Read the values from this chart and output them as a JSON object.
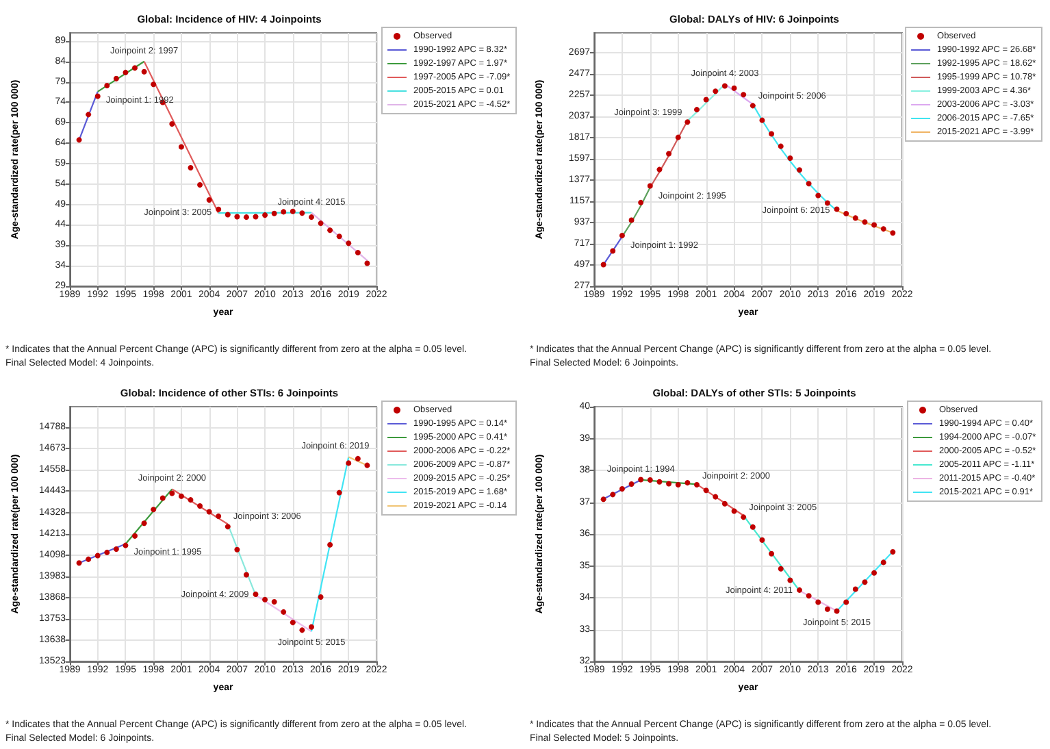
{
  "chart_data": [
    {
      "type": "scatter",
      "title": "Global: Incidence of HIV: 4 Joinpoints",
      "xlabel": "year",
      "ylabel": "Age-standardized rate(per 100 000)",
      "xlim": [
        1989,
        2022
      ],
      "xticks": [
        1989,
        1992,
        1995,
        1998,
        2001,
        2004,
        2007,
        2010,
        2013,
        2016,
        2019,
        2022
      ],
      "ylim": [
        29,
        91
      ],
      "yticks": [
        29,
        34,
        39,
        44,
        49,
        54,
        59,
        64,
        69,
        74,
        79,
        84,
        89
      ],
      "grid": true,
      "legend": "right",
      "series": [
        {
          "name": "Observed",
          "type": "scatter",
          "marker": "circle",
          "color": "#c00000",
          "x": [
            1990,
            1991,
            1992,
            1993,
            1994,
            1995,
            1996,
            1997,
            1998,
            1999,
            2000,
            2001,
            2002,
            2003,
            2004,
            2005,
            2006,
            2007,
            2008,
            2009,
            2010,
            2011,
            2012,
            2013,
            2014,
            2015,
            2016,
            2017,
            2018,
            2019,
            2020,
            2021
          ],
          "values": [
            64.8,
            71.0,
            75.5,
            78.1,
            79.8,
            81.3,
            82.4,
            81.5,
            78.4,
            74.0,
            68.7,
            63.1,
            58.0,
            53.8,
            50.1,
            47.8,
            46.5,
            46.0,
            45.9,
            46.0,
            46.4,
            46.8,
            47.2,
            47.3,
            46.9,
            45.9,
            44.4,
            42.7,
            41.2,
            39.5,
            37.2,
            34.6
          ]
        },
        {
          "name": "1990-1992 APC = 8.32*",
          "type": "line",
          "marker": "none",
          "color": "#5a5ad6",
          "x": [
            1990,
            1992
          ],
          "values": [
            64.8,
            76.6
          ]
        },
        {
          "name": "1992-1997 APC = 1.97*",
          "type": "line",
          "marker": "none",
          "color": "#3c9a3c",
          "x": [
            1992,
            1997
          ],
          "values": [
            76.6,
            84.0
          ]
        },
        {
          "name": "1997-2005 APC = -7.09*",
          "type": "line",
          "marker": "none",
          "color": "#e05a5a",
          "x": [
            1997,
            2005
          ],
          "values": [
            84.0,
            46.9
          ]
        },
        {
          "name": "2005-2015 APC = 0.01",
          "type": "line",
          "marker": "none",
          "color": "#48e0e0",
          "x": [
            2005,
            2015
          ],
          "values": [
            46.9,
            47.0
          ]
        },
        {
          "name": "2015-2021 APC = -4.52*",
          "type": "line",
          "marker": "none",
          "color": "#e0b4e8",
          "x": [
            2015,
            2021
          ],
          "values": [
            47.0,
            35.3
          ]
        }
      ],
      "annotations": [
        {
          "text": "Joinpoint 1: 1992",
          "x": 1992,
          "y": 76.6
        },
        {
          "text": "Joinpoint 2: 1997",
          "x": 1997,
          "y": 84.0
        },
        {
          "text": "Joinpoint 3: 2005",
          "x": 2005,
          "y": 46.9
        },
        {
          "text": "Joinpoint 4: 2015",
          "x": 2015,
          "y": 47.0
        },
        "* Indicates that the Annual Percent Change (APC) is significantly different from zero at the alpha = 0.05 level.",
        "Final Selected Model: 4 Joinpoints."
      ]
    },
    {
      "type": "scatter",
      "title": "Global: DALYs of HIV: 6 Joinpoints",
      "xlabel": "year",
      "ylabel": "Age-standardized rate(per 100 000)",
      "xlim": [
        1989,
        2022
      ],
      "xticks": [
        1989,
        1992,
        1995,
        1998,
        2001,
        2004,
        2007,
        2010,
        2013,
        2016,
        2019,
        2022
      ],
      "ylim": [
        277,
        2900
      ],
      "yticks": [
        277,
        497,
        717,
        937,
        1157,
        1377,
        1597,
        1817,
        2037,
        2257,
        2477,
        2697
      ],
      "grid": true,
      "legend": "right",
      "series": [
        {
          "name": "Observed",
          "type": "scatter",
          "marker": "circle",
          "color": "#c00000",
          "x": [
            1990,
            1991,
            1992,
            1993,
            1994,
            1995,
            1996,
            1997,
            1998,
            1999,
            2000,
            2001,
            2002,
            2003,
            2004,
            2005,
            2006,
            2007,
            2008,
            2009,
            2010,
            2011,
            2012,
            2013,
            2014,
            2015,
            2016,
            2017,
            2018,
            2019,
            2020,
            2021
          ],
          "values": [
            500,
            642,
            801,
            961,
            1143,
            1316,
            1485,
            1649,
            1818,
            1977,
            2105,
            2209,
            2296,
            2351,
            2328,
            2260,
            2146,
            1995,
            1854,
            1726,
            1603,
            1480,
            1339,
            1216,
            1138,
            1075,
            1029,
            983,
            942,
            911,
            870,
            828
          ]
        },
        {
          "name": "1990-1992 APC = 26.68*",
          "type": "line",
          "marker": "none",
          "color": "#5a5ad6",
          "x": [
            1990,
            1991,
            1992
          ],
          "values": [
            500,
            645,
            790
          ]
        },
        {
          "name": "1992-1995 APC = 18.62*",
          "type": "line",
          "marker": "none",
          "color": "#5ca05c",
          "x": [
            1992,
            1993,
            1994,
            1995
          ],
          "values": [
            790,
            940,
            1110,
            1300
          ]
        },
        {
          "name": "1995-1999 APC = 10.78*",
          "type": "line",
          "marker": "none",
          "color": "#d05a5a",
          "x": [
            1995,
            1996,
            1997,
            1998,
            1999
          ],
          "values": [
            1300,
            1460,
            1630,
            1810,
            1990
          ]
        },
        {
          "name": "1999-2003 APC = 4.36*",
          "type": "line",
          "marker": "none",
          "color": "#88f0e0",
          "x": [
            1999,
            2000,
            2001,
            2002,
            2003
          ],
          "values": [
            1990,
            2080,
            2175,
            2270,
            2370
          ]
        },
        {
          "name": "2003-2006 APC = -3.03*",
          "type": "line",
          "marker": "none",
          "color": "#dca8f0",
          "x": [
            2003,
            2004,
            2005,
            2006
          ],
          "values": [
            2370,
            2300,
            2230,
            2160
          ]
        },
        {
          "name": "2006-2015 APC = -7.65*",
          "type": "line",
          "marker": "none",
          "color": "#40e4f0",
          "x": [
            2006,
            2007,
            2008,
            2009,
            2010,
            2011,
            2012,
            2013,
            2014,
            2015
          ],
          "values": [
            2160,
            1995,
            1842,
            1701,
            1571,
            1451,
            1340,
            1237,
            1143,
            1060
          ]
        },
        {
          "name": "2015-2021 APC = -3.99*",
          "type": "line",
          "marker": "none",
          "color": "#f0b464",
          "x": [
            2015,
            2016,
            2017,
            2018,
            2019,
            2020,
            2021
          ],
          "values": [
            1060,
            1018,
            977,
            938,
            901,
            865,
            830
          ]
        }
      ],
      "annotations": [
        {
          "text": "Joinpoint 1: 1992",
          "x": 1992,
          "y": 790
        },
        {
          "text": "Joinpoint 2: 1995",
          "x": 1995,
          "y": 1300
        },
        {
          "text": "Joinpoint 3: 1999",
          "x": 1999,
          "y": 1990
        },
        {
          "text": "Joinpoint 4: 2003",
          "x": 2003,
          "y": 2370
        },
        {
          "text": "Joinpoint 5: 2006",
          "x": 2006,
          "y": 2160
        },
        {
          "text": "Joinpoint 6: 2015",
          "x": 2015,
          "y": 1060
        },
        "* Indicates that the Annual Percent Change (APC) is significantly different from zero at the alpha = 0.05 level.",
        "Final Selected Model: 6 Joinpoints."
      ]
    },
    {
      "type": "scatter",
      "title": "Global: Incidence of other STIs: 6 Joinpoints",
      "xlabel": "year",
      "ylabel": "Age-standardized rate(per 100 000)",
      "xlim": [
        1989,
        2022
      ],
      "xticks": [
        1989,
        1992,
        1995,
        1998,
        2001,
        2004,
        2007,
        2010,
        2013,
        2016,
        2019,
        2022
      ],
      "ylim": [
        13523,
        14900
      ],
      "yticks": [
        13523,
        13638,
        13753,
        13868,
        13983,
        14098,
        14213,
        14328,
        14443,
        14558,
        14673,
        14788
      ],
      "grid": true,
      "legend": "right",
      "series": [
        {
          "name": "Observed",
          "type": "scatter",
          "marker": "circle",
          "color": "#c00000",
          "x": [
            1990,
            1991,
            1992,
            1993,
            1994,
            1995,
            1996,
            1997,
            1998,
            1999,
            2000,
            2001,
            2002,
            2003,
            2004,
            2005,
            2006,
            2007,
            2008,
            2009,
            2010,
            2011,
            2012,
            2013,
            2014,
            2015,
            2016,
            2017,
            2018,
            2019,
            2020,
            2021
          ],
          "values": [
            14055,
            14075,
            14095,
            14112,
            14130,
            14150,
            14201,
            14270,
            14344,
            14406,
            14432,
            14416,
            14396,
            14363,
            14332,
            14308,
            14251,
            14127,
            13991,
            13886,
            13857,
            13845,
            13790,
            13733,
            13692,
            13709,
            13871,
            14153,
            14435,
            14595,
            14619,
            14583
          ]
        },
        {
          "name": "1990-1995 APC = 0.14*",
          "type": "line",
          "marker": "none",
          "color": "#5a5ad6",
          "x": [
            1990,
            1995
          ],
          "values": [
            14055,
            14158
          ]
        },
        {
          "name": "1995-2000 APC = 0.41*",
          "type": "line",
          "marker": "none",
          "color": "#3c9a3c",
          "x": [
            1995,
            2000
          ],
          "values": [
            14158,
            14454
          ]
        },
        {
          "name": "2000-2006 APC = -0.22*",
          "type": "line",
          "marker": "none",
          "color": "#e05a5a",
          "x": [
            2000,
            2006
          ],
          "values": [
            14454,
            14265
          ]
        },
        {
          "name": "2006-2009 APC = -0.87*",
          "type": "line",
          "marker": "none",
          "color": "#88e8dc",
          "x": [
            2006,
            2009
          ],
          "values": [
            14265,
            13881
          ]
        },
        {
          "name": "2009-2015 APC = -0.25*",
          "type": "line",
          "marker": "none",
          "color": "#ecbcec",
          "x": [
            2009,
            2015
          ],
          "values": [
            13881,
            13685
          ]
        },
        {
          "name": "2015-2019 APC = 1.68*",
          "type": "line",
          "marker": "none",
          "color": "#40e4f4",
          "x": [
            2015,
            2019
          ],
          "values": [
            13685,
            14628
          ]
        },
        {
          "name": "2019-2021 APC = -0.14",
          "type": "line",
          "marker": "none",
          "color": "#f0c474",
          "x": [
            2019,
            2021
          ],
          "values": [
            14628,
            14583
          ]
        }
      ],
      "annotations": [
        {
          "text": "Joinpoint 1: 1995",
          "x": 1995,
          "y": 14158
        },
        {
          "text": "Joinpoint 2: 2000",
          "x": 2000,
          "y": 14454
        },
        {
          "text": "Joinpoint 3: 2006",
          "x": 2006,
          "y": 14265
        },
        {
          "text": "Joinpoint 4: 2009",
          "x": 2009,
          "y": 13881
        },
        {
          "text": "Joinpoint 5: 2015",
          "x": 2015,
          "y": 13685
        },
        {
          "text": "Joinpoint 6: 2019",
          "x": 2019,
          "y": 14628
        },
        "* Indicates that the Annual Percent Change (APC) is significantly different from zero at the alpha = 0.05 level.",
        "Final Selected Model: 6 Joinpoints."
      ]
    },
    {
      "type": "scatter",
      "title": "Global: DALYs of other STIs: 5 Joinpoints",
      "xlabel": "year",
      "ylabel": "Age-standardized rate(per 100 000)",
      "xlim": [
        1989,
        2022
      ],
      "xticks": [
        1989,
        1992,
        1995,
        1998,
        2001,
        2004,
        2007,
        2010,
        2013,
        2016,
        2019,
        2022
      ],
      "ylim": [
        32,
        40
      ],
      "yticks": [
        32,
        33,
        34,
        35,
        36,
        37,
        38,
        39,
        40
      ],
      "grid": true,
      "legend": "right",
      "series": [
        {
          "name": "Observed",
          "type": "scatter",
          "marker": "circle",
          "color": "#c00000",
          "x": [
            1990,
            1991,
            1992,
            1993,
            1994,
            1995,
            1996,
            1997,
            1998,
            1999,
            2000,
            2001,
            2002,
            2003,
            2004,
            2005,
            2006,
            2007,
            2008,
            2009,
            2010,
            2011,
            2012,
            2013,
            2014,
            2015,
            2016,
            2017,
            2018,
            2019,
            2020,
            2021
          ],
          "values": [
            37.09,
            37.24,
            37.42,
            37.57,
            37.71,
            37.7,
            37.64,
            37.58,
            37.55,
            37.61,
            37.55,
            37.37,
            37.17,
            36.95,
            36.72,
            36.53,
            36.22,
            35.81,
            35.38,
            34.91,
            34.55,
            34.24,
            34.06,
            33.86,
            33.64,
            33.58,
            33.86,
            34.27,
            34.49,
            34.78,
            35.11,
            35.44
          ]
        },
        {
          "name": "1990-1994 APC = 0.40*",
          "type": "line",
          "marker": "none",
          "color": "#5a5ad6",
          "x": [
            1990,
            1994
          ],
          "values": [
            37.1,
            37.7
          ]
        },
        {
          "name": "1994-2000 APC = -0.07*",
          "type": "line",
          "marker": "none",
          "color": "#3c9a3c",
          "x": [
            1994,
            2000
          ],
          "values": [
            37.7,
            37.56
          ]
        },
        {
          "name": "2000-2005 APC = -0.52*",
          "type": "line",
          "marker": "none",
          "color": "#e05a5a",
          "x": [
            2000,
            2005
          ],
          "values": [
            37.56,
            36.58
          ]
        },
        {
          "name": "2005-2011 APC = -1.11*",
          "type": "line",
          "marker": "none",
          "color": "#48e8d0",
          "x": [
            2005,
            2011
          ],
          "values": [
            36.58,
            34.22
          ]
        },
        {
          "name": "2011-2015 APC = -0.40*",
          "type": "line",
          "marker": "none",
          "color": "#ecb4e4",
          "x": [
            2011,
            2015
          ],
          "values": [
            34.22,
            33.58
          ]
        },
        {
          "name": "2015-2021 APC = 0.91*",
          "type": "line",
          "marker": "none",
          "color": "#40e4f4",
          "x": [
            2015,
            2021
          ],
          "values": [
            33.58,
            35.45
          ]
        }
      ],
      "annotations": [
        {
          "text": "Joinpoint 1: 1994",
          "x": 1994,
          "y": 37.7
        },
        {
          "text": "Joinpoint 2: 2000",
          "x": 2000,
          "y": 37.56
        },
        {
          "text": "Joinpoint 3: 2005",
          "x": 2005,
          "y": 36.58
        },
        {
          "text": "Joinpoint 4: 2011",
          "x": 2011,
          "y": 34.22
        },
        {
          "text": "Joinpoint 5: 2015",
          "x": 2015,
          "y": 33.58
        },
        "* Indicates that the Annual Percent Change (APC) is significantly different from zero at the alpha = 0.05 level.",
        "Final Selected Model: 5 Joinpoints."
      ]
    }
  ]
}
